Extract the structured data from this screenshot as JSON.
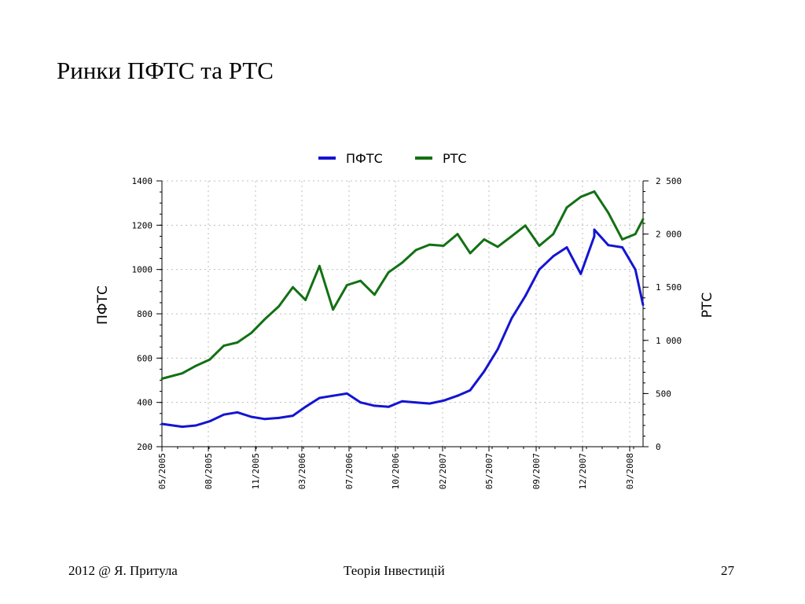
{
  "slide": {
    "title": "Ринки ПФТС та РТС",
    "footer_left": "2012 @ Я. Притула",
    "footer_center": "Теорія Інвестицій",
    "page_number": "27"
  },
  "chart_data": {
    "type": "line",
    "title": "",
    "legend": [
      "ПФТС",
      "РТС"
    ],
    "legend_position": "top-center",
    "grid": true,
    "x_tick_labels": [
      "05/2005",
      "08/2005",
      "11/2005",
      "03/2006",
      "07/2006",
      "10/2006",
      "02/2007",
      "05/2007",
      "09/2007",
      "12/2007",
      "03/2008"
    ],
    "x_tick_labels_positions_note": "",
    "y_left": {
      "label": "ПФТС",
      "range": [
        200,
        1400
      ],
      "ticks": [
        "1400",
        "1200",
        "1000",
        "800",
        "600",
        "400",
        "200"
      ],
      "tick_values": [
        1400,
        1200,
        1000,
        800,
        600,
        400,
        200
      ]
    },
    "y_right": {
      "label": "РТС",
      "range": [
        0,
        2500
      ],
      "ticks": [
        "2 500",
        "2 000",
        "1 500",
        "1 000",
        "500",
        "0"
      ],
      "tick_values": [
        2500,
        2000,
        1500,
        1000,
        500,
        0
      ]
    },
    "x_range": [
      "2005-05",
      "2008-04"
    ],
    "series": [
      {
        "name": "ПФТС",
        "axis": "left",
        "color": "#1414d2",
        "x": [
          "2005-05",
          "2005-06",
          "2005-07",
          "2005-08",
          "2005-09",
          "2005-10",
          "2005-11",
          "2005-12",
          "2006-01",
          "2006-02",
          "2006-03",
          "2006-04",
          "2006-05",
          "2006-06",
          "2006-07",
          "2006-08",
          "2006-09",
          "2006-10",
          "2006-11",
          "2006-12",
          "2007-01",
          "2007-02",
          "2007-03",
          "2007-04",
          "2007-05",
          "2007-06",
          "2007-07",
          "2007-08",
          "2007-09",
          "2007-10",
          "2007-11",
          "2007-12",
          "2007-12",
          "2008-01",
          "2008-02",
          "2008-03",
          "2008-04"
        ],
        "values": [
          303,
          290,
          296,
          315,
          345,
          355,
          335,
          325,
          330,
          340,
          380,
          420,
          430,
          440,
          400,
          385,
          380,
          405,
          400,
          395,
          408,
          430,
          455,
          540,
          640,
          780,
          880,
          1000,
          1060,
          1100,
          980,
          1150,
          1180,
          1110,
          1100,
          1000,
          840
        ]
      },
      {
        "name": "РТС",
        "axis": "right",
        "color": "#137013",
        "x": [
          "2005-05",
          "2005-06",
          "2005-07",
          "2005-08",
          "2005-09",
          "2005-10",
          "2005-11",
          "2005-12",
          "2006-01",
          "2006-02",
          "2006-03",
          "2006-04",
          "2006-05",
          "2006-06",
          "2006-07",
          "2006-08",
          "2006-09",
          "2006-10",
          "2006-11",
          "2006-12",
          "2007-01",
          "2007-02",
          "2007-03",
          "2007-04",
          "2007-05",
          "2007-06",
          "2007-07",
          "2007-08",
          "2007-09",
          "2007-10",
          "2007-11",
          "2007-12",
          "2008-01",
          "2008-02",
          "2008-03",
          "2008-04"
        ],
        "values": [
          640,
          690,
          760,
          820,
          950,
          980,
          1070,
          1200,
          1320,
          1500,
          1380,
          1700,
          1290,
          1520,
          1560,
          1430,
          1640,
          1730,
          1850,
          1900,
          1890,
          2000,
          1820,
          1950,
          1880,
          1980,
          2080,
          1890,
          2000,
          2250,
          2350,
          2400,
          2200,
          1950,
          2000,
          2140
        ]
      }
    ]
  }
}
